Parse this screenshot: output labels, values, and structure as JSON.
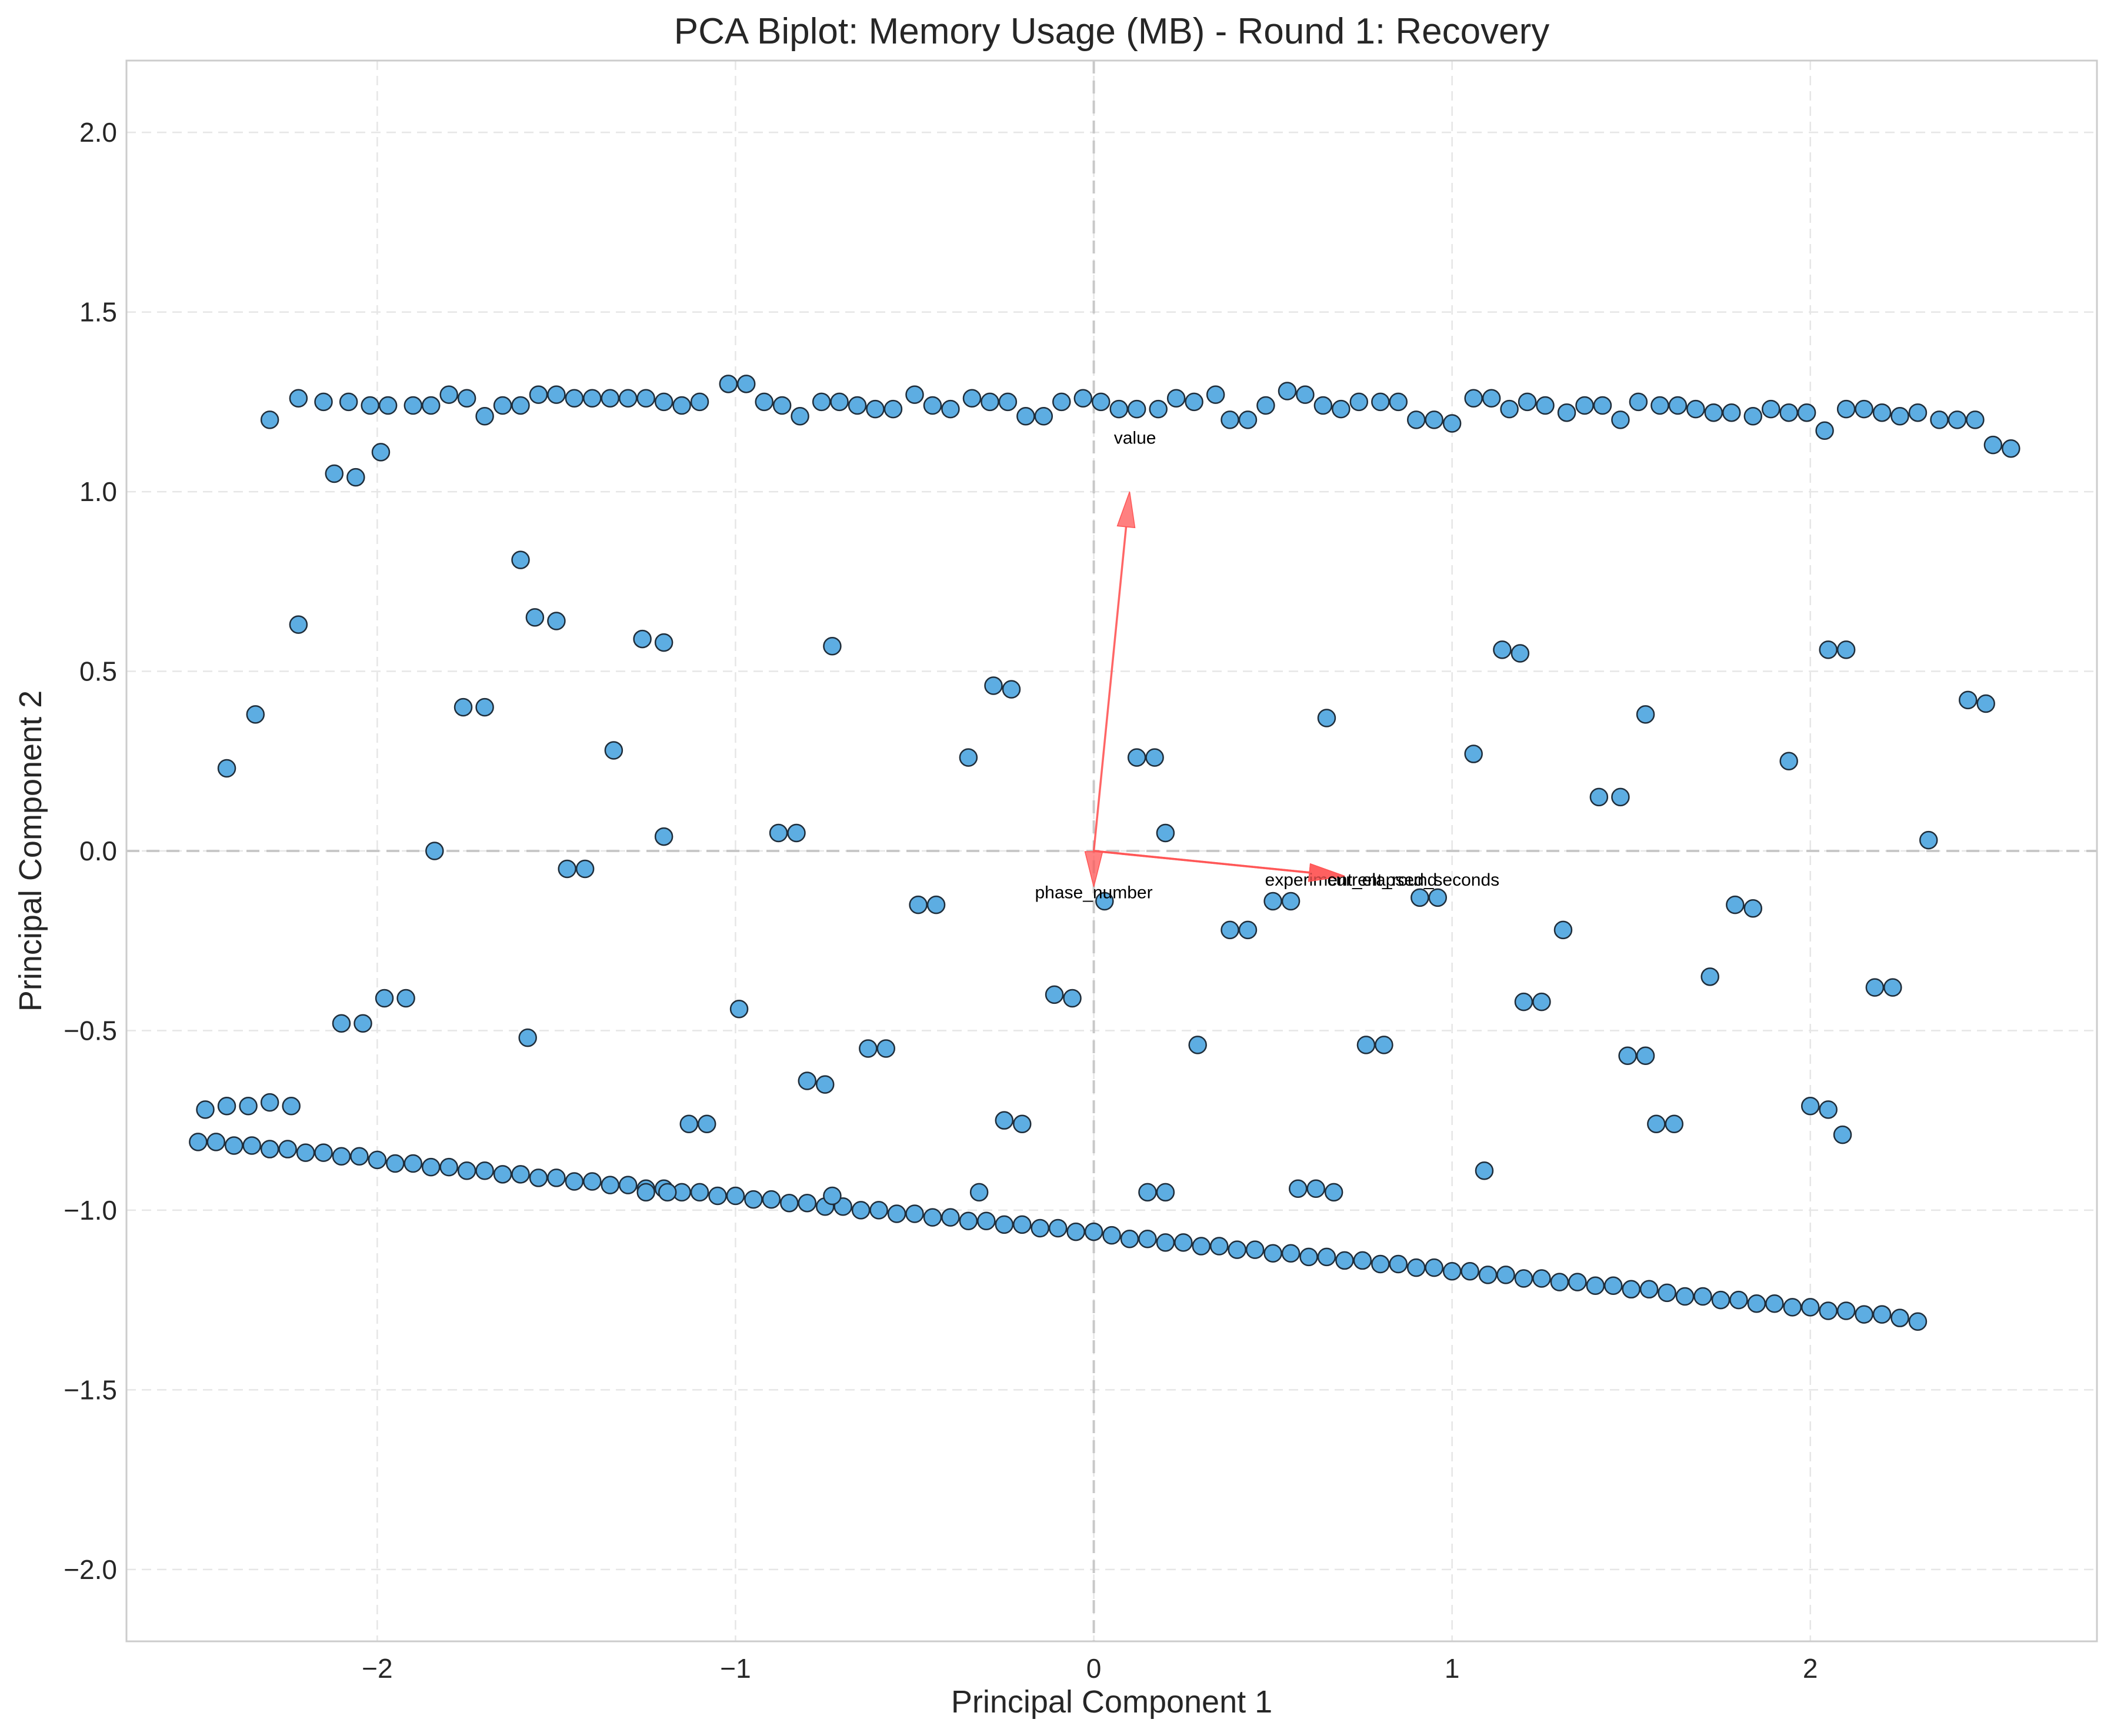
{
  "chart_data": {
    "type": "scatter",
    "title": "PCA Biplot: Memory Usage (MB) - Round 1: Recovery",
    "xlabel": "Principal Component 1",
    "ylabel": "Principal Component 2",
    "xlim": [
      -2.7,
      2.8
    ],
    "ylim": [
      -2.2,
      2.2
    ],
    "x_ticks": [
      -2,
      -1,
      0,
      1,
      2
    ],
    "x_tick_labels": [
      "−2",
      "−1",
      "0",
      "1",
      "2"
    ],
    "y_ticks": [
      2.0,
      1.5,
      1.0,
      0.5,
      0.0,
      -0.5,
      -1.0,
      -1.5,
      -2.0
    ],
    "y_tick_labels": [
      "2.0",
      "1.5",
      "1.0",
      "0.5",
      "0.0",
      "−0.5",
      "−1.0",
      "−1.5",
      "−2.0"
    ],
    "grid": true,
    "point_color": "#5dade2",
    "arrow_color": "#ff5555",
    "loadings": [
      {
        "label": "value",
        "x": 0.1,
        "y": 1.0
      },
      {
        "label": "phase_number",
        "x": 0.0,
        "y": -0.1
      },
      {
        "label": "experiment_elapsed_seconds",
        "x": 0.7,
        "y": -0.07
      },
      {
        "label": "current_round",
        "x": 0.7,
        "y": -0.07
      }
    ],
    "points": [
      [
        -2.5,
        -0.81
      ],
      [
        -2.45,
        -0.81
      ],
      [
        -2.4,
        -0.82
      ],
      [
        -2.35,
        -0.82
      ],
      [
        -2.3,
        -0.83
      ],
      [
        -2.25,
        -0.83
      ],
      [
        -2.2,
        -0.84
      ],
      [
        -2.15,
        -0.84
      ],
      [
        -2.1,
        -0.85
      ],
      [
        -2.05,
        -0.85
      ],
      [
        -2.0,
        -0.86
      ],
      [
        -1.95,
        -0.87
      ],
      [
        -1.9,
        -0.87
      ],
      [
        -1.85,
        -0.88
      ],
      [
        -1.8,
        -0.88
      ],
      [
        -1.75,
        -0.89
      ],
      [
        -1.7,
        -0.89
      ],
      [
        -1.65,
        -0.9
      ],
      [
        -1.6,
        -0.9
      ],
      [
        -1.55,
        -0.91
      ],
      [
        -1.5,
        -0.91
      ],
      [
        -1.45,
        -0.92
      ],
      [
        -1.4,
        -0.92
      ],
      [
        -1.35,
        -0.93
      ],
      [
        -1.3,
        -0.93
      ],
      [
        -1.25,
        -0.94
      ],
      [
        -1.2,
        -0.94
      ],
      [
        -1.15,
        -0.95
      ],
      [
        -1.1,
        -0.95
      ],
      [
        -1.05,
        -0.96
      ],
      [
        -1.0,
        -0.96
      ],
      [
        -0.95,
        -0.97
      ],
      [
        -0.9,
        -0.97
      ],
      [
        -0.85,
        -0.98
      ],
      [
        -0.8,
        -0.98
      ],
      [
        -0.75,
        -0.99
      ],
      [
        -0.7,
        -0.99
      ],
      [
        -0.65,
        -1.0
      ],
      [
        -0.6,
        -1.0
      ],
      [
        -0.55,
        -1.01
      ],
      [
        -0.5,
        -1.01
      ],
      [
        -0.45,
        -1.02
      ],
      [
        -0.4,
        -1.02
      ],
      [
        -0.35,
        -1.03
      ],
      [
        -0.3,
        -1.03
      ],
      [
        -0.25,
        -1.04
      ],
      [
        -0.2,
        -1.04
      ],
      [
        -0.15,
        -1.05
      ],
      [
        -0.1,
        -1.05
      ],
      [
        -0.05,
        -1.06
      ],
      [
        0.0,
        -1.06
      ],
      [
        0.05,
        -1.07
      ],
      [
        0.1,
        -1.08
      ],
      [
        0.15,
        -1.08
      ],
      [
        0.2,
        -1.09
      ],
      [
        0.25,
        -1.09
      ],
      [
        0.3,
        -1.1
      ],
      [
        0.35,
        -1.1
      ],
      [
        0.4,
        -1.11
      ],
      [
        0.45,
        -1.11
      ],
      [
        0.5,
        -1.12
      ],
      [
        0.55,
        -1.12
      ],
      [
        0.6,
        -1.13
      ],
      [
        0.65,
        -1.13
      ],
      [
        0.7,
        -1.14
      ],
      [
        0.75,
        -1.14
      ],
      [
        0.8,
        -1.15
      ],
      [
        0.85,
        -1.15
      ],
      [
        0.9,
        -1.16
      ],
      [
        0.95,
        -1.16
      ],
      [
        1.0,
        -1.17
      ],
      [
        1.05,
        -1.17
      ],
      [
        1.1,
        -1.18
      ],
      [
        1.15,
        -1.18
      ],
      [
        1.2,
        -1.19
      ],
      [
        1.25,
        -1.19
      ],
      [
        1.3,
        -1.2
      ],
      [
        1.35,
        -1.2
      ],
      [
        1.4,
        -1.21
      ],
      [
        1.45,
        -1.21
      ],
      [
        1.5,
        -1.22
      ],
      [
        1.55,
        -1.22
      ],
      [
        1.6,
        -1.23
      ],
      [
        1.65,
        -1.24
      ],
      [
        1.7,
        -1.24
      ],
      [
        1.75,
        -1.25
      ],
      [
        1.8,
        -1.25
      ],
      [
        1.85,
        -1.26
      ],
      [
        1.9,
        -1.26
      ],
      [
        1.95,
        -1.27
      ],
      [
        2.0,
        -1.27
      ],
      [
        2.05,
        -1.28
      ],
      [
        2.1,
        -1.28
      ],
      [
        2.15,
        -1.29
      ],
      [
        2.2,
        -1.29
      ],
      [
        2.25,
        -1.3
      ],
      [
        2.3,
        -1.31
      ],
      [
        -2.3,
        1.2
      ],
      [
        -2.22,
        1.26
      ],
      [
        -2.15,
        1.25
      ],
      [
        -2.08,
        1.25
      ],
      [
        -2.02,
        1.24
      ],
      [
        -1.97,
        1.24
      ],
      [
        -1.9,
        1.24
      ],
      [
        -1.85,
        1.24
      ],
      [
        -1.8,
        1.27
      ],
      [
        -1.75,
        1.26
      ],
      [
        -1.7,
        1.21
      ],
      [
        -1.65,
        1.24
      ],
      [
        -1.6,
        1.24
      ],
      [
        -1.55,
        1.27
      ],
      [
        -1.5,
        1.27
      ],
      [
        -1.45,
        1.26
      ],
      [
        -1.4,
        1.26
      ],
      [
        -1.35,
        1.26
      ],
      [
        -1.3,
        1.26
      ],
      [
        -1.25,
        1.26
      ],
      [
        -1.2,
        1.25
      ],
      [
        -1.15,
        1.24
      ],
      [
        -1.1,
        1.25
      ],
      [
        -1.02,
        1.3
      ],
      [
        -0.97,
        1.3
      ],
      [
        -0.92,
        1.25
      ],
      [
        -0.87,
        1.24
      ],
      [
        -0.82,
        1.21
      ],
      [
        -0.76,
        1.25
      ],
      [
        -0.71,
        1.25
      ],
      [
        -0.66,
        1.24
      ],
      [
        -0.61,
        1.23
      ],
      [
        -0.56,
        1.23
      ],
      [
        -0.5,
        1.27
      ],
      [
        -0.45,
        1.24
      ],
      [
        -0.4,
        1.23
      ],
      [
        -0.34,
        1.26
      ],
      [
        -0.29,
        1.25
      ],
      [
        -0.24,
        1.25
      ],
      [
        -0.19,
        1.21
      ],
      [
        -0.14,
        1.21
      ],
      [
        -0.09,
        1.25
      ],
      [
        -0.03,
        1.26
      ],
      [
        0.02,
        1.25
      ],
      [
        0.07,
        1.23
      ],
      [
        0.12,
        1.23
      ],
      [
        0.18,
        1.23
      ],
      [
        0.23,
        1.26
      ],
      [
        0.28,
        1.25
      ],
      [
        0.34,
        1.27
      ],
      [
        0.38,
        1.2
      ],
      [
        0.43,
        1.2
      ],
      [
        0.48,
        1.24
      ],
      [
        0.54,
        1.28
      ],
      [
        0.59,
        1.27
      ],
      [
        0.64,
        1.24
      ],
      [
        0.69,
        1.23
      ],
      [
        0.74,
        1.25
      ],
      [
        0.8,
        1.25
      ],
      [
        0.85,
        1.25
      ],
      [
        0.9,
        1.2
      ],
      [
        0.95,
        1.2
      ],
      [
        1.0,
        1.19
      ],
      [
        1.06,
        1.26
      ],
      [
        1.11,
        1.26
      ],
      [
        1.16,
        1.23
      ],
      [
        1.21,
        1.25
      ],
      [
        1.26,
        1.24
      ],
      [
        1.32,
        1.22
      ],
      [
        1.37,
        1.24
      ],
      [
        1.42,
        1.24
      ],
      [
        1.47,
        1.2
      ],
      [
        1.52,
        1.25
      ],
      [
        1.58,
        1.24
      ],
      [
        1.63,
        1.24
      ],
      [
        1.68,
        1.23
      ],
      [
        1.73,
        1.22
      ],
      [
        1.78,
        1.22
      ],
      [
        1.84,
        1.21
      ],
      [
        1.89,
        1.23
      ],
      [
        1.94,
        1.22
      ],
      [
        1.99,
        1.22
      ],
      [
        2.04,
        1.17
      ],
      [
        2.1,
        1.23
      ],
      [
        2.15,
        1.23
      ],
      [
        2.2,
        1.22
      ],
      [
        2.25,
        1.21
      ],
      [
        2.3,
        1.22
      ],
      [
        2.36,
        1.2
      ],
      [
        2.41,
        1.2
      ],
      [
        2.46,
        1.2
      ],
      [
        2.51,
        1.13
      ],
      [
        2.56,
        1.12
      ],
      [
        -2.12,
        1.05
      ],
      [
        -2.06,
        1.04
      ],
      [
        -1.99,
        1.11
      ],
      [
        -2.42,
        0.23
      ],
      [
        -2.34,
        0.38
      ],
      [
        -2.22,
        0.63
      ],
      [
        -1.6,
        0.81
      ],
      [
        -1.56,
        0.65
      ],
      [
        -1.5,
        0.64
      ],
      [
        -1.76,
        0.4
      ],
      [
        -1.7,
        0.4
      ],
      [
        -1.34,
        0.28
      ],
      [
        -1.26,
        0.59
      ],
      [
        -1.2,
        0.58
      ],
      [
        -0.88,
        0.05
      ],
      [
        -0.83,
        0.05
      ],
      [
        -0.73,
        0.57
      ],
      [
        -0.35,
        0.26
      ],
      [
        -0.28,
        0.46
      ],
      [
        -0.23,
        0.45
      ],
      [
        0.12,
        0.26
      ],
      [
        0.17,
        0.26
      ],
      [
        0.2,
        0.05
      ],
      [
        0.65,
        0.37
      ],
      [
        1.06,
        0.27
      ],
      [
        1.14,
        0.56
      ],
      [
        1.19,
        0.55
      ],
      [
        1.41,
        0.15
      ],
      [
        1.47,
        0.15
      ],
      [
        1.54,
        0.38
      ],
      [
        1.94,
        0.25
      ],
      [
        2.05,
        0.56
      ],
      [
        2.1,
        0.56
      ],
      [
        2.44,
        0.42
      ],
      [
        2.49,
        0.41
      ],
      [
        2.33,
        0.03
      ],
      [
        -1.84,
        0.0
      ],
      [
        -1.2,
        0.04
      ],
      [
        -1.47,
        -0.05
      ],
      [
        -1.42,
        -0.05
      ],
      [
        -0.49,
        -0.15
      ],
      [
        -0.44,
        -0.15
      ],
      [
        0.03,
        -0.14
      ],
      [
        0.38,
        -0.22
      ],
      [
        0.43,
        -0.22
      ],
      [
        0.5,
        -0.14
      ],
      [
        0.55,
        -0.14
      ],
      [
        0.91,
        -0.13
      ],
      [
        0.96,
        -0.13
      ],
      [
        1.31,
        -0.22
      ],
      [
        1.79,
        -0.15
      ],
      [
        1.84,
        -0.16
      ],
      [
        -2.1,
        -0.48
      ],
      [
        -2.04,
        -0.48
      ],
      [
        -1.98,
        -0.41
      ],
      [
        -1.92,
        -0.41
      ],
      [
        -1.58,
        -0.52
      ],
      [
        -0.99,
        -0.44
      ],
      [
        -0.63,
        -0.55
      ],
      [
        -0.58,
        -0.55
      ],
      [
        -0.11,
        -0.4
      ],
      [
        -0.06,
        -0.41
      ],
      [
        0.29,
        -0.54
      ],
      [
        0.76,
        -0.54
      ],
      [
        0.81,
        -0.54
      ],
      [
        1.2,
        -0.42
      ],
      [
        1.25,
        -0.42
      ],
      [
        1.49,
        -0.57
      ],
      [
        1.54,
        -0.57
      ],
      [
        1.72,
        -0.35
      ],
      [
        2.18,
        -0.38
      ],
      [
        2.23,
        -0.38
      ],
      [
        -2.48,
        -0.72
      ],
      [
        -2.42,
        -0.71
      ],
      [
        -2.36,
        -0.71
      ],
      [
        -2.3,
        -0.7
      ],
      [
        -2.24,
        -0.71
      ],
      [
        -1.13,
        -0.76
      ],
      [
        -1.08,
        -0.76
      ],
      [
        -0.8,
        -0.64
      ],
      [
        -0.75,
        -0.65
      ],
      [
        -0.73,
        -0.96
      ],
      [
        -0.32,
        -0.95
      ],
      [
        -0.25,
        -0.75
      ],
      [
        -0.2,
        -0.76
      ],
      [
        -1.25,
        -0.95
      ],
      [
        -1.19,
        -0.95
      ],
      [
        0.15,
        -0.95
      ],
      [
        0.2,
        -0.95
      ],
      [
        0.57,
        -0.94
      ],
      [
        0.62,
        -0.94
      ],
      [
        0.67,
        -0.95
      ],
      [
        1.09,
        -0.89
      ],
      [
        1.57,
        -0.76
      ],
      [
        1.62,
        -0.76
      ],
      [
        2.0,
        -0.71
      ],
      [
        2.05,
        -0.72
      ],
      [
        2.09,
        -0.79
      ]
    ]
  }
}
